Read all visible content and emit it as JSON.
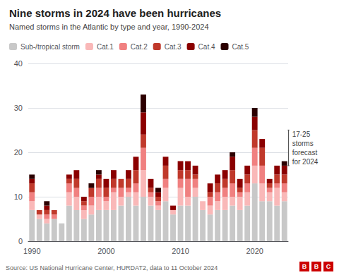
{
  "chart_data": {
    "type": "bar",
    "title": "Nine storms in 2024 have been hurricanes",
    "subtitle": "Named storms in the Atlantic by type and year, 1990-2024",
    "source": "Source: US National Hurricane Center, HURDAT2, data to 11 October 2024",
    "logo": {
      "text": "BBC",
      "color": "#cc0000"
    },
    "categories": [
      "1990",
      null,
      null,
      null,
      null,
      null,
      null,
      null,
      null,
      null,
      "2000",
      null,
      null,
      null,
      null,
      null,
      null,
      null,
      null,
      null,
      "2010",
      null,
      null,
      null,
      null,
      null,
      null,
      null,
      null,
      null,
      "2020",
      null,
      null,
      null,
      null
    ],
    "series": [
      {
        "name": "Sub-/tropical storm",
        "color": "#c8c8c8",
        "values": [
          7,
          5,
          4,
          5,
          4,
          8,
          7,
          5,
          6,
          7,
          7,
          7,
          8,
          10,
          8,
          10,
          8,
          7,
          9,
          6,
          8,
          8,
          10,
          7,
          6,
          7,
          7,
          8,
          7,
          8,
          13,
          9,
          9,
          8,
          9
        ]
      },
      {
        "name": "Cat.1",
        "color": "#f9b8b8",
        "values": [
          2,
          1,
          1,
          0,
          0,
          3,
          3,
          2,
          2,
          3,
          2,
          4,
          2,
          1,
          3,
          6,
          2,
          1,
          3,
          1,
          4,
          2,
          2,
          2,
          2,
          2,
          3,
          2,
          3,
          3,
          4,
          4,
          2,
          4,
          2
        ]
      },
      {
        "name": "Cat.2",
        "color": "#f08080",
        "values": [
          2,
          0,
          1,
          1,
          0,
          2,
          2,
          1,
          2,
          2,
          1,
          1,
          2,
          1,
          2,
          5,
          1,
          1,
          2,
          0,
          2,
          4,
          2,
          0,
          2,
          2,
          2,
          3,
          1,
          2,
          4,
          4,
          1,
          1,
          2
        ]
      },
      {
        "name": "Cat.3",
        "color": "#c0392b",
        "values": [
          2,
          1,
          1,
          1,
          0,
          1,
          2,
          1,
          2,
          2,
          2,
          2,
          2,
          2,
          3,
          3,
          1,
          1,
          3,
          0,
          2,
          2,
          1,
          0,
          1,
          2,
          2,
          3,
          1,
          2,
          4,
          4,
          1,
          2,
          2
        ]
      },
      {
        "name": "Cat.4",
        "color": "#8b0000",
        "values": [
          1,
          0,
          1,
          0,
          0,
          1,
          2,
          1,
          0,
          1,
          2,
          2,
          0,
          2,
          3,
          5,
          2,
          1,
          2,
          1,
          2,
          2,
          2,
          0,
          2,
          2,
          2,
          3,
          2,
          2,
          3,
          2,
          1,
          2,
          2
        ]
      },
      {
        "name": "Cat.5",
        "color": "#2c0000",
        "values": [
          1,
          0,
          1,
          0,
          0,
          0,
          0,
          0,
          1,
          1,
          0,
          0,
          0,
          0,
          0,
          4,
          0,
          1,
          0,
          0,
          0,
          0,
          0,
          0,
          0,
          0,
          0,
          1,
          0,
          0,
          2,
          0,
          0,
          0,
          1
        ]
      }
    ],
    "forecast": {
      "low": 17,
      "high": 25,
      "label": "17-25\nstorms\nforecast\nfor 2024"
    },
    "stacked": true,
    "ylim": [
      0,
      40
    ],
    "yticks": [
      0,
      10,
      20,
      30,
      40
    ],
    "grid": true,
    "legend": "upper left"
  }
}
